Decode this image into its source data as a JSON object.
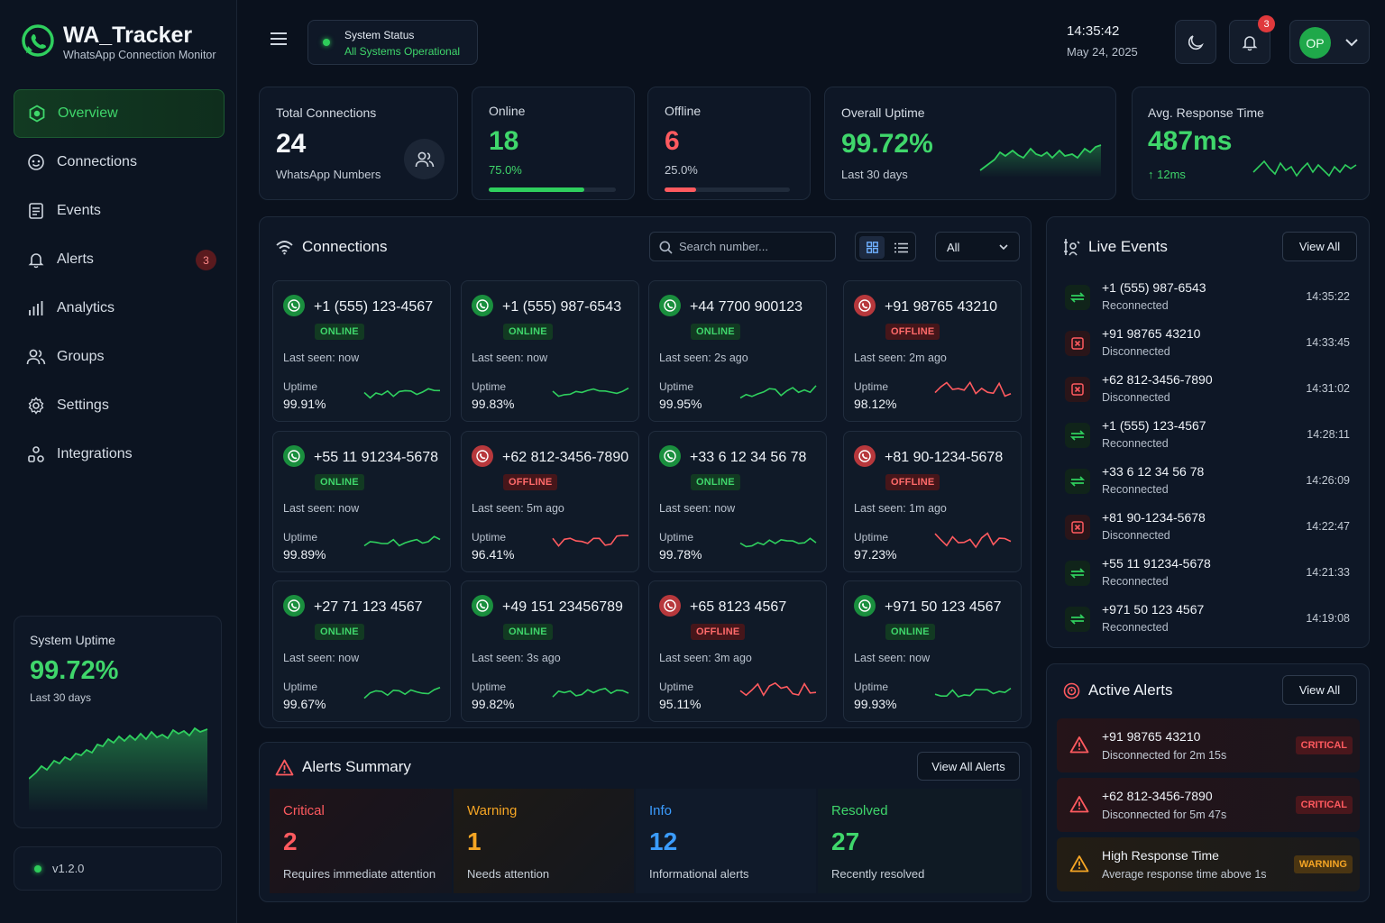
{
  "brand": {
    "title": "WA_Tracker",
    "subtitle": "WhatsApp Connection Monitor"
  },
  "nav": [
    {
      "label": "Overview",
      "icon": "overview-icon"
    },
    {
      "label": "Connections",
      "icon": "connections-icon"
    },
    {
      "label": "Events",
      "icon": "events-icon"
    },
    {
      "label": "Alerts",
      "icon": "bell-icon",
      "badge": "3"
    },
    {
      "label": "Analytics",
      "icon": "analytics-icon"
    },
    {
      "label": "Groups",
      "icon": "groups-icon"
    },
    {
      "label": "Settings",
      "icon": "gear-icon"
    },
    {
      "label": "Integrations",
      "icon": "integrations-icon"
    }
  ],
  "sidebar_uptime": {
    "title": "System Uptime",
    "value": "99.72%",
    "sub": "Last 30 days"
  },
  "version": "v1.2.0",
  "topbar": {
    "status_title": "System Status",
    "status_text": "All Systems Operational",
    "time": "14:35:42",
    "date": "May 24, 2025",
    "notif_count": "3",
    "avatar": "OP"
  },
  "stats": {
    "total": {
      "label": "Total Connections",
      "value": "24",
      "sub": "WhatsApp Numbers"
    },
    "online": {
      "label": "Online",
      "value": "18",
      "sub": "75.0%",
      "fraction": 0.75
    },
    "offline": {
      "label": "Offline",
      "value": "6",
      "sub": "25.0%",
      "fraction": 0.25
    },
    "uptime": {
      "label": "Overall Uptime",
      "value": "99.72%",
      "sub": "Last 30 days"
    },
    "response": {
      "label": "Avg. Response Time",
      "value": "487ms",
      "sub": "12ms"
    }
  },
  "connections": {
    "title": "Connections",
    "search_placeholder": "Search number...",
    "filter": "All",
    "last_seen_prefix": "Last seen:",
    "uptime_label": "Uptime",
    "items": [
      {
        "number": "+1 (555) 123-4567",
        "status": "ONLINE",
        "last_seen": "now",
        "uptime": "99.91%"
      },
      {
        "number": "+1 (555) 987-6543",
        "status": "ONLINE",
        "last_seen": "now",
        "uptime": "99.83%"
      },
      {
        "number": "+44 7700 900123",
        "status": "ONLINE",
        "last_seen": "2s ago",
        "uptime": "99.95%"
      },
      {
        "number": "+91 98765 43210",
        "status": "OFFLINE",
        "last_seen": "2m ago",
        "uptime": "98.12%"
      },
      {
        "number": "+55 11 91234-5678",
        "status": "ONLINE",
        "last_seen": "now",
        "uptime": "99.89%"
      },
      {
        "number": "+62 812-3456-7890",
        "status": "OFFLINE",
        "last_seen": "5m ago",
        "uptime": "96.41%"
      },
      {
        "number": "+33 6 12 34 56 78",
        "status": "ONLINE",
        "last_seen": "now",
        "uptime": "99.78%"
      },
      {
        "number": "+81 90-1234-5678",
        "status": "OFFLINE",
        "last_seen": "1m ago",
        "uptime": "97.23%"
      },
      {
        "number": "+27 71 123 4567",
        "status": "ONLINE",
        "last_seen": "now",
        "uptime": "99.67%"
      },
      {
        "number": "+49 151 23456789",
        "status": "ONLINE",
        "last_seen": "3s ago",
        "uptime": "99.82%"
      },
      {
        "number": "+65 8123 4567",
        "status": "OFFLINE",
        "last_seen": "3m ago",
        "uptime": "95.11%"
      },
      {
        "number": "+971 50 123 4567",
        "status": "ONLINE",
        "last_seen": "now",
        "uptime": "99.93%"
      }
    ]
  },
  "alerts_summary": {
    "title": "Alerts Summary",
    "button": "View All Alerts",
    "cells": [
      {
        "label": "Critical",
        "value": "2",
        "sub": "Requires immediate attention",
        "color": "#ff5a5f"
      },
      {
        "label": "Warning",
        "value": "1",
        "sub": "Needs attention",
        "color": "#f5a524"
      },
      {
        "label": "Info",
        "value": "12",
        "sub": "Informational alerts",
        "color": "#3b9cff"
      },
      {
        "label": "Resolved",
        "value": "27",
        "sub": "Recently resolved",
        "color": "#3fd66b"
      }
    ]
  },
  "live_events": {
    "title": "Live Events",
    "button": "View All",
    "items": [
      {
        "number": "+1 (555) 987-6543",
        "event": "Reconnected",
        "time": "14:35:22",
        "type": "reconnect"
      },
      {
        "number": "+91 98765 43210",
        "event": "Disconnected",
        "time": "14:33:45",
        "type": "disconnect"
      },
      {
        "number": "+62 812-3456-7890",
        "event": "Disconnected",
        "time": "14:31:02",
        "type": "disconnect"
      },
      {
        "number": "+1 (555) 123-4567",
        "event": "Reconnected",
        "time": "14:28:11",
        "type": "reconnect"
      },
      {
        "number": "+33 6 12 34 56 78",
        "event": "Reconnected",
        "time": "14:26:09",
        "type": "reconnect"
      },
      {
        "number": "+81 90-1234-5678",
        "event": "Disconnected",
        "time": "14:22:47",
        "type": "disconnect"
      },
      {
        "number": "+55 11 91234-5678",
        "event": "Reconnected",
        "time": "14:21:33",
        "type": "reconnect"
      },
      {
        "number": "+971 50 123 4567",
        "event": "Reconnected",
        "time": "14:19:08",
        "type": "reconnect"
      }
    ]
  },
  "active_alerts": {
    "title": "Active Alerts",
    "button": "View All",
    "items": [
      {
        "title": "+91 98765 43210",
        "desc": "Disconnected for 2m 15s",
        "level": "CRITICAL"
      },
      {
        "title": "+62 812-3456-7890",
        "desc": "Disconnected for 5m 47s",
        "level": "CRITICAL"
      },
      {
        "title": "High Response Time",
        "desc": "Average response time above 1s",
        "level": "WARNING"
      }
    ]
  },
  "colors": {
    "accent": "#3fd66b",
    "danger": "#ff5a5f",
    "warning": "#f5a524",
    "info": "#3b9cff"
  }
}
